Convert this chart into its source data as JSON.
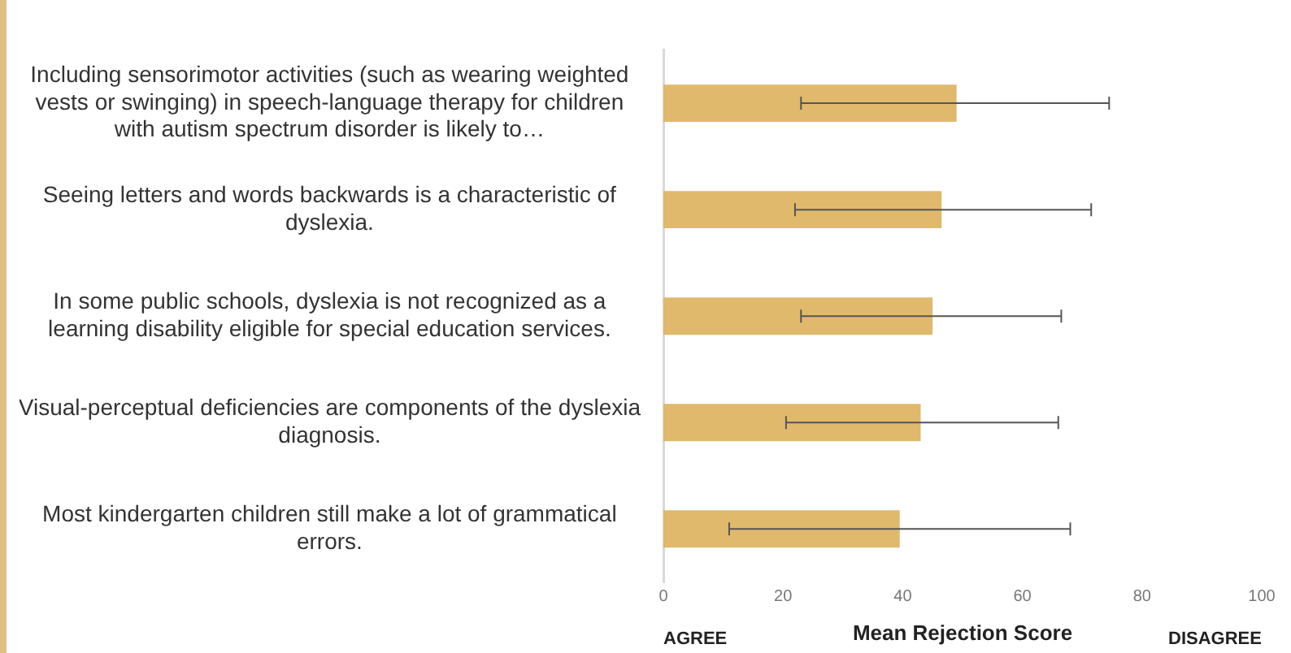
{
  "chart_data": {
    "type": "bar",
    "orientation": "horizontal",
    "xlabel": "Mean Rejection Score",
    "categories": [
      "Including sensorimotor activities (such as wearing weighted vests or swinging) in speech-language therapy for children with autism spectrum disorder is likely to…",
      "Seeing letters and words backwards is a characteristic of dyslexia.",
      "In some public schools, dyslexia is not recognized as a learning disability eligible for special education services.",
      "Visual-perceptual deficiencies are components of the dyslexia diagnosis.",
      "Most kindergarten children still make a lot of grammatical errors."
    ],
    "values": [
      49,
      46.5,
      45,
      43,
      39.5
    ],
    "errors": [
      [
        23,
        74.5
      ],
      [
        22,
        71.5
      ],
      [
        23,
        66.5
      ],
      [
        20.5,
        66
      ],
      [
        11,
        68
      ]
    ],
    "color": "#e0b96c",
    "xlim": [
      0,
      100
    ],
    "xticks": [
      0,
      20,
      40,
      60,
      80,
      100
    ],
    "annotations": [
      "AGREE",
      "DISAGREE"
    ],
    "grid": false,
    "legend": false
  }
}
